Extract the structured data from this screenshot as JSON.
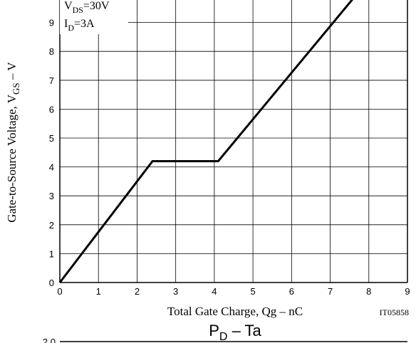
{
  "chart_data": {
    "type": "line",
    "xlabel": "Total Gate Charge, Qg  –  nC",
    "ylabel_main": "Gate-to-Source Voltage, V",
    "ylabel_sub": "GS",
    "ylabel_unit": "  –  V",
    "xlim": [
      0,
      9
    ],
    "ylim": [
      0,
      10
    ],
    "x_ticks": [
      "0",
      "1",
      "2",
      "3",
      "4",
      "5",
      "6",
      "7",
      "8",
      "9"
    ],
    "y_ticks": [
      "0",
      "1",
      "2",
      "3",
      "4",
      "5",
      "6",
      "7",
      "8",
      "9"
    ],
    "grid": true,
    "conditions": [
      {
        "main": "V",
        "sub": "DS",
        "rest": "=30V"
      },
      {
        "main": "I",
        "sub": "D",
        "rest": "=3A"
      }
    ],
    "series": [
      {
        "x": [
          0,
          2.4,
          4.1,
          7.7
        ],
        "y": [
          0,
          4.2,
          4.2,
          10
        ]
      }
    ],
    "figure_code": "IT05858"
  },
  "next_chart": {
    "title_main": "P",
    "title_sub": "D",
    "title_rest": "  –  Ta",
    "partial_y_tick": "2.0"
  }
}
